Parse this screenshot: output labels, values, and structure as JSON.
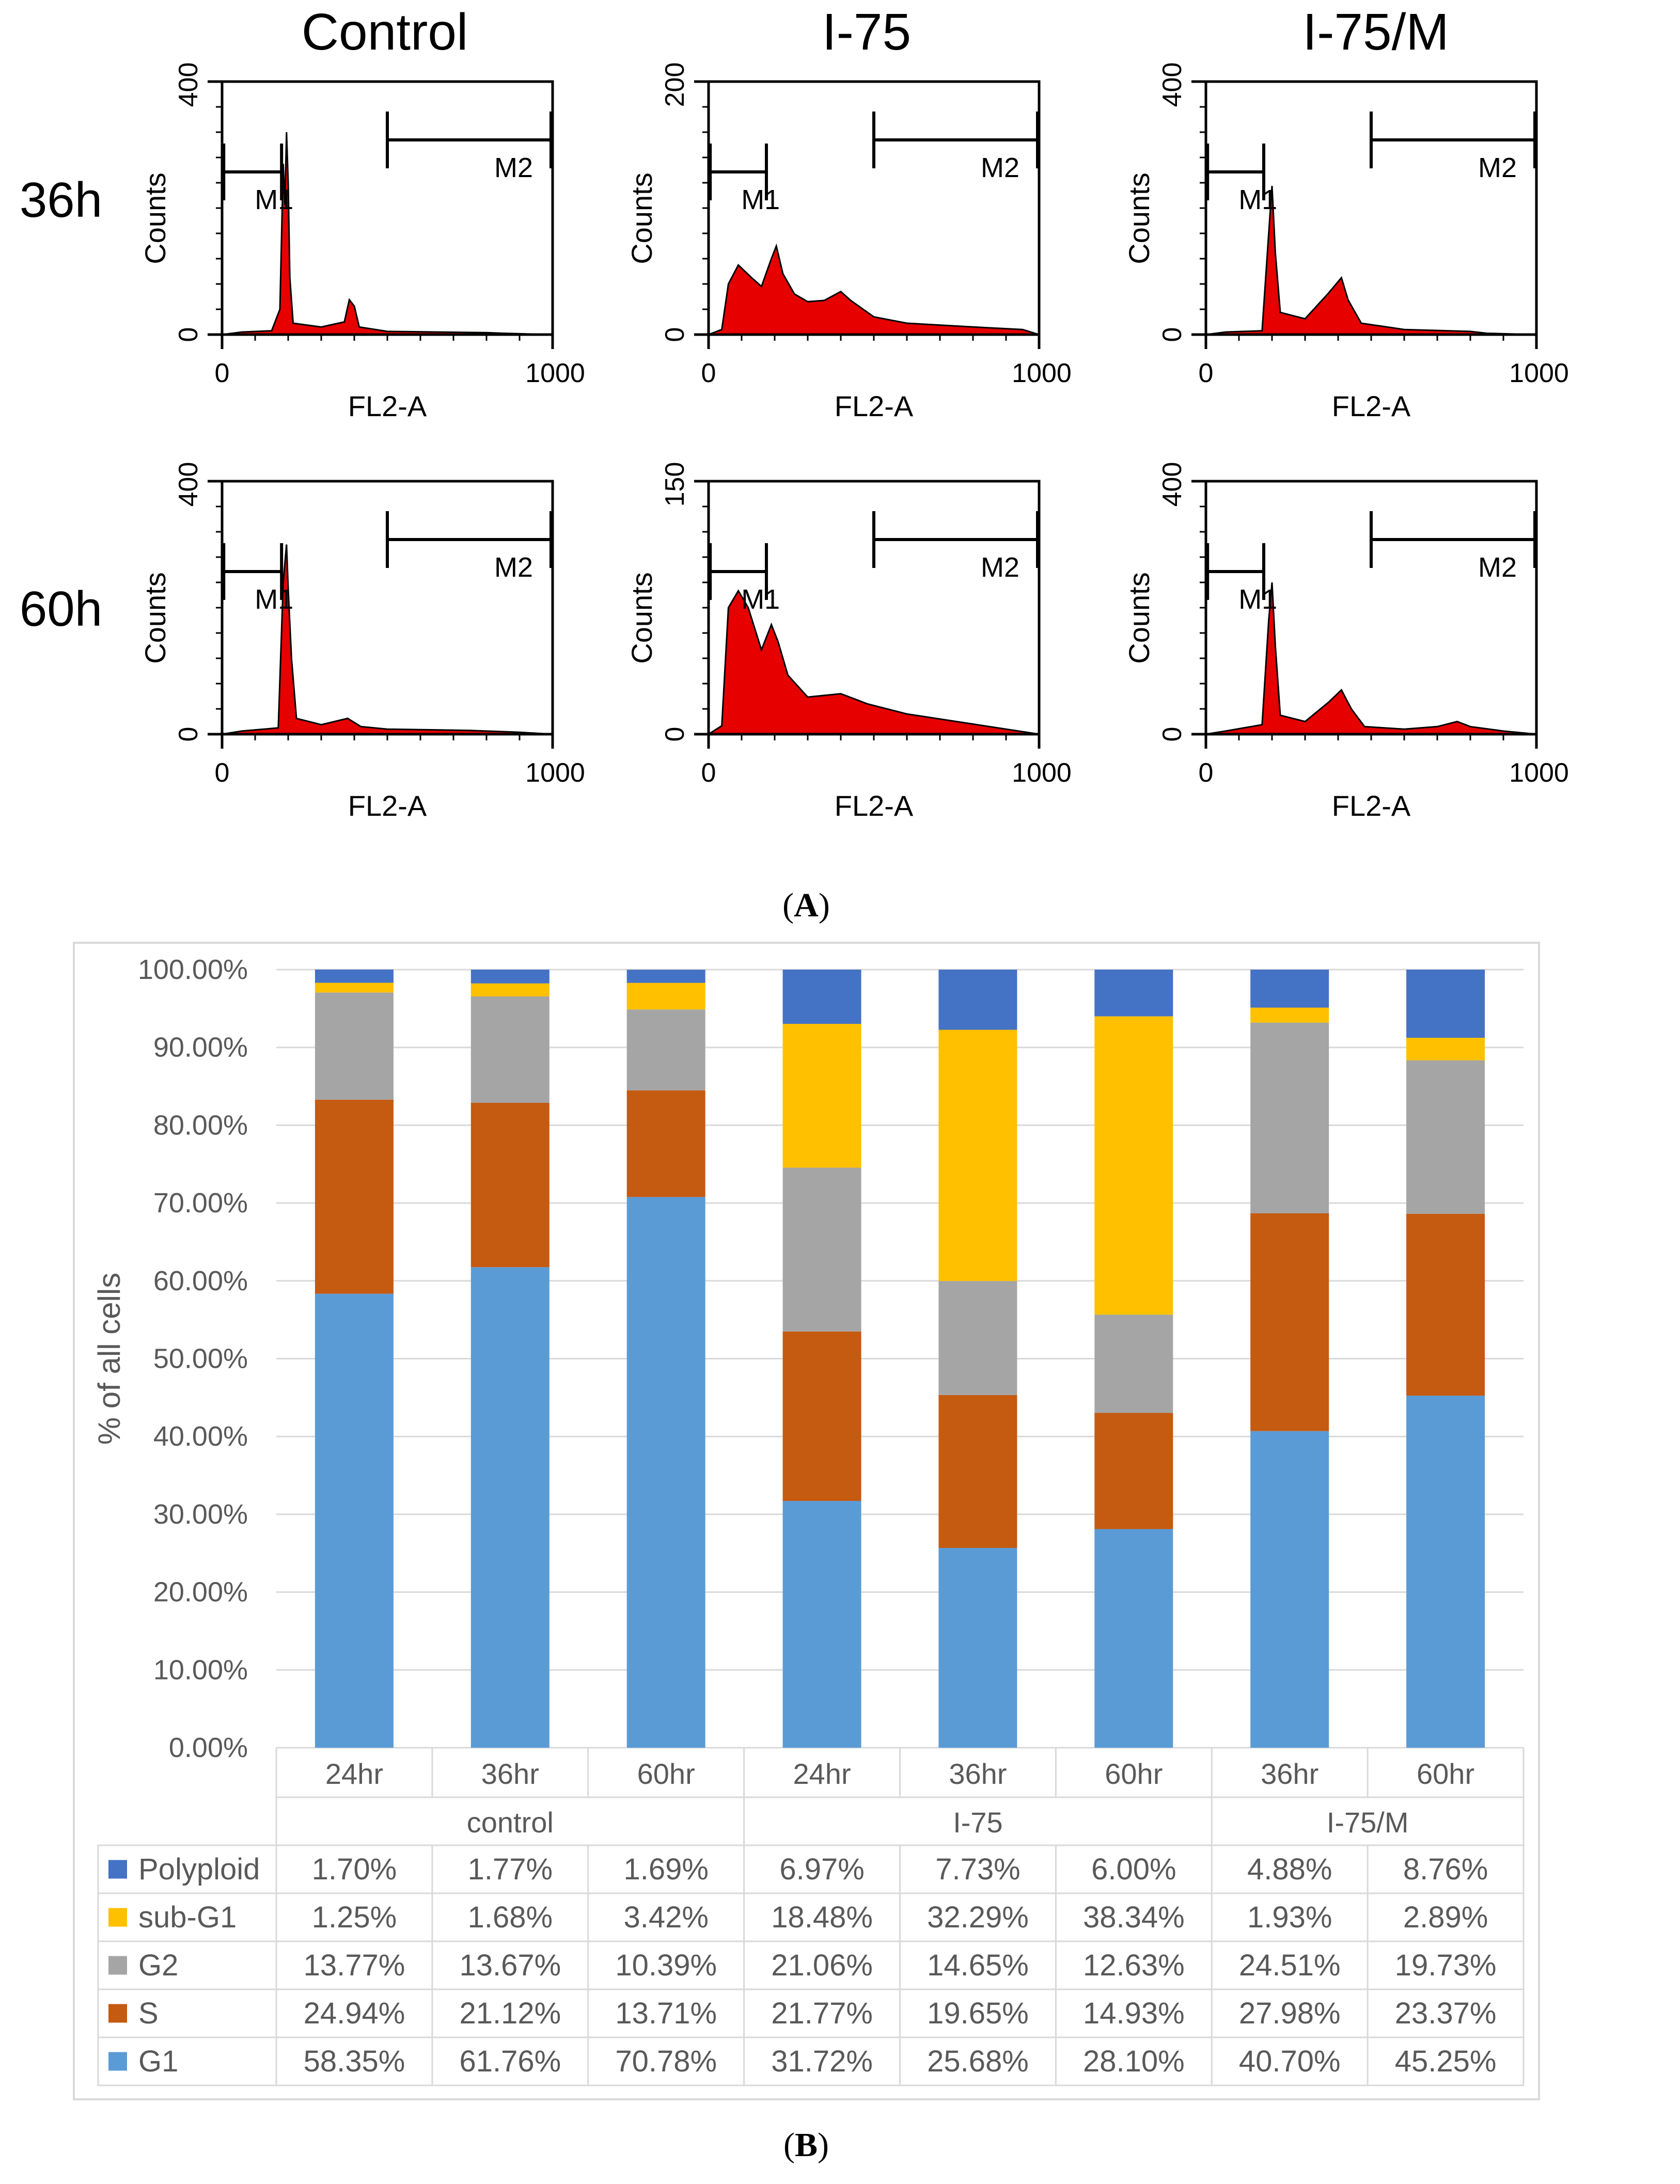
{
  "colors": {
    "histogram_fill": "#e60000",
    "axis": "#000000",
    "polyploid": "#4472c4",
    "sub_g1": "#ffc000",
    "g2": "#a5a5a5",
    "s": "#c55a11",
    "g1": "#5b9bd5",
    "grid": "#d9d9d9",
    "text_gray": "#595959"
  },
  "panel_a": {
    "caption_open": "(",
    "caption_letter": "A",
    "caption_close": ")",
    "column_titles": [
      "Control",
      "I-75",
      "I-75/M"
    ],
    "row_labels": [
      "36h",
      "60h"
    ],
    "x_axis_label": "FL2-A",
    "y_axis_label": "Counts",
    "x_tick_min": "0",
    "x_tick_max": "1000",
    "gate_m1": "M1",
    "gate_m2": "M2",
    "histograms": [
      {
        "condition": "Control",
        "time": "36h",
        "y_max_label": "400",
        "y_min_label": "0",
        "y_max": 400,
        "gate_m1": [
          5,
          180
        ],
        "gate_m2": [
          500,
          1000
        ],
        "profile": [
          [
            0,
            0
          ],
          [
            60,
            4
          ],
          [
            150,
            6
          ],
          [
            175,
            40
          ],
          [
            185,
            270
          ],
          [
            190,
            205
          ],
          [
            195,
            320
          ],
          [
            200,
            240
          ],
          [
            205,
            90
          ],
          [
            215,
            18
          ],
          [
            300,
            12
          ],
          [
            370,
            20
          ],
          [
            385,
            55
          ],
          [
            400,
            45
          ],
          [
            415,
            12
          ],
          [
            500,
            5
          ],
          [
            800,
            3
          ],
          [
            850,
            2
          ],
          [
            1000,
            0
          ]
        ]
      },
      {
        "condition": "I-75",
        "time": "36h",
        "y_max_label": "200",
        "y_min_label": "0",
        "y_max": 200,
        "gate_m1": [
          5,
          175
        ],
        "gate_m2": [
          500,
          1000
        ],
        "profile": [
          [
            0,
            0
          ],
          [
            40,
            4
          ],
          [
            60,
            40
          ],
          [
            90,
            55
          ],
          [
            130,
            45
          ],
          [
            160,
            38
          ],
          [
            190,
            60
          ],
          [
            205,
            70
          ],
          [
            225,
            48
          ],
          [
            260,
            32
          ],
          [
            300,
            26
          ],
          [
            350,
            27
          ],
          [
            400,
            34
          ],
          [
            430,
            27
          ],
          [
            500,
            14
          ],
          [
            600,
            9
          ],
          [
            800,
            6
          ],
          [
            950,
            4
          ],
          [
            1000,
            0
          ]
        ]
      },
      {
        "condition": "I-75/M",
        "time": "36h",
        "y_max_label": "400",
        "y_min_label": "0",
        "y_max": 400,
        "gate_m1": [
          5,
          175
        ],
        "gate_m2": [
          500,
          1000
        ],
        "profile": [
          [
            0,
            0
          ],
          [
            60,
            4
          ],
          [
            170,
            6
          ],
          [
            190,
            160
          ],
          [
            200,
            235
          ],
          [
            210,
            130
          ],
          [
            225,
            35
          ],
          [
            300,
            25
          ],
          [
            370,
            65
          ],
          [
            410,
            90
          ],
          [
            430,
            55
          ],
          [
            470,
            18
          ],
          [
            600,
            8
          ],
          [
            800,
            5
          ],
          [
            850,
            2
          ],
          [
            1000,
            0
          ]
        ]
      },
      {
        "condition": "Control",
        "time": "60h",
        "y_max_label": "400",
        "y_min_label": "0",
        "y_max": 400,
        "gate_m1": [
          5,
          180
        ],
        "gate_m2": [
          500,
          1000
        ],
        "profile": [
          [
            0,
            0
          ],
          [
            60,
            5
          ],
          [
            170,
            10
          ],
          [
            185,
            240
          ],
          [
            195,
            300
          ],
          [
            200,
            230
          ],
          [
            210,
            120
          ],
          [
            225,
            25
          ],
          [
            300,
            15
          ],
          [
            380,
            25
          ],
          [
            420,
            12
          ],
          [
            500,
            8
          ],
          [
            750,
            6
          ],
          [
            900,
            3
          ],
          [
            1000,
            0
          ]
        ]
      },
      {
        "condition": "I-75",
        "time": "60h",
        "y_max_label": "150",
        "y_min_label": "0",
        "y_max": 150,
        "gate_m1": [
          5,
          175
        ],
        "gate_m2": [
          500,
          1000
        ],
        "profile": [
          [
            0,
            0
          ],
          [
            40,
            5
          ],
          [
            60,
            75
          ],
          [
            90,
            85
          ],
          [
            120,
            75
          ],
          [
            160,
            50
          ],
          [
            190,
            65
          ],
          [
            210,
            55
          ],
          [
            240,
            35
          ],
          [
            300,
            22
          ],
          [
            400,
            24
          ],
          [
            480,
            18
          ],
          [
            600,
            12
          ],
          [
            800,
            6
          ],
          [
            1000,
            0
          ]
        ]
      },
      {
        "condition": "I-75/M",
        "time": "60h",
        "y_max_label": "400",
        "y_min_label": "0",
        "y_max": 400,
        "gate_m1": [
          5,
          175
        ],
        "gate_m2": [
          500,
          1000
        ],
        "profile": [
          [
            0,
            0
          ],
          [
            60,
            5
          ],
          [
            170,
            15
          ],
          [
            190,
            180
          ],
          [
            200,
            240
          ],
          [
            210,
            140
          ],
          [
            225,
            30
          ],
          [
            300,
            20
          ],
          [
            370,
            50
          ],
          [
            410,
            70
          ],
          [
            440,
            40
          ],
          [
            480,
            12
          ],
          [
            600,
            8
          ],
          [
            700,
            12
          ],
          [
            760,
            20
          ],
          [
            800,
            12
          ],
          [
            900,
            5
          ],
          [
            1000,
            0
          ]
        ]
      }
    ]
  },
  "panel_b": {
    "caption_open": "(",
    "caption_letter": "B",
    "caption_close": ")"
  },
  "chart_data": [
    {
      "type": "histogram",
      "description_source": "panel A flow cytometry histograms (values estimated)",
      "title": "",
      "xlabel": "FL2-A",
      "ylabel": "Counts",
      "xlim": [
        0,
        1000
      ]
    },
    {
      "type": "bar",
      "stacked": true,
      "ylabel": "% of all cells",
      "ylim": [
        0,
        100
      ],
      "y_ticks": [
        "0.00%",
        "10.00%",
        "20.00%",
        "30.00%",
        "40.00%",
        "50.00%",
        "60.00%",
        "70.00%",
        "80.00%",
        "90.00%",
        "100.00%"
      ],
      "grid": true,
      "categories": [
        "24hr",
        "36hr",
        "60hr",
        "24hr",
        "36hr",
        "60hr",
        "36hr",
        "60hr"
      ],
      "groups": [
        {
          "label": "control",
          "span": 3
        },
        {
          "label": "I-75",
          "span": 3
        },
        {
          "label": "I-75/M",
          "span": 2
        }
      ],
      "series": [
        {
          "name": "Polyploid",
          "color": "#4472c4",
          "values": [
            1.7,
            1.77,
            1.69,
            6.97,
            7.73,
            6.0,
            4.88,
            8.76
          ],
          "labels": [
            "1.70%",
            "1.77%",
            "1.69%",
            "6.97%",
            "7.73%",
            "6.00%",
            "4.88%",
            "8.76%"
          ]
        },
        {
          "name": "sub-G1",
          "color": "#ffc000",
          "values": [
            1.25,
            1.68,
            3.42,
            18.48,
            32.29,
            38.34,
            1.93,
            2.89
          ],
          "labels": [
            "1.25%",
            "1.68%",
            "3.42%",
            "18.48%",
            "32.29%",
            "38.34%",
            "1.93%",
            "2.89%"
          ]
        },
        {
          "name": "G2",
          "color": "#a5a5a5",
          "values": [
            13.77,
            13.67,
            10.39,
            21.06,
            14.65,
            12.63,
            24.51,
            19.73
          ],
          "labels": [
            "13.77%",
            "13.67%",
            "10.39%",
            "21.06%",
            "14.65%",
            "12.63%",
            "24.51%",
            "19.73%"
          ]
        },
        {
          "name": "S",
          "color": "#c55a11",
          "values": [
            24.94,
            21.12,
            13.71,
            21.77,
            19.65,
            14.93,
            27.98,
            23.37
          ],
          "labels": [
            "24.94%",
            "21.12%",
            "13.71%",
            "21.77%",
            "19.65%",
            "14.93%",
            "27.98%",
            "23.37%"
          ]
        },
        {
          "name": "G1",
          "color": "#5b9bd5",
          "values": [
            58.35,
            61.76,
            70.78,
            31.72,
            25.68,
            28.1,
            40.7,
            45.25
          ],
          "labels": [
            "58.35%",
            "61.76%",
            "70.78%",
            "31.72%",
            "25.68%",
            "28.10%",
            "40.70%",
            "45.25%"
          ]
        }
      ]
    }
  ]
}
